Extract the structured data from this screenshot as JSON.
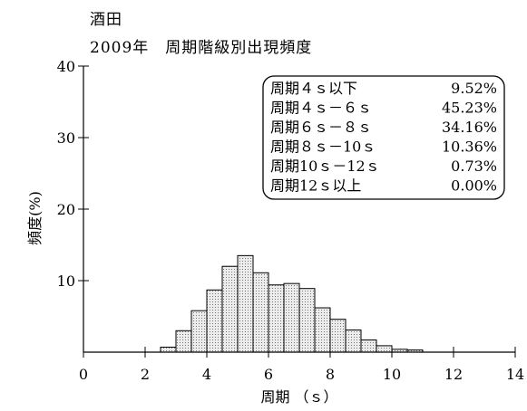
{
  "chart_data": {
    "type": "bar",
    "title": "酒田",
    "subtitle": "2009年　周期階級別出現頻度",
    "xlabel": "周期 （ｓ）",
    "ylabel": "頻度(%)",
    "xlim": [
      0,
      14
    ],
    "ylim": [
      0,
      40
    ],
    "xticks": [
      0,
      2,
      4,
      6,
      8,
      10,
      12,
      14
    ],
    "yticks": [
      10,
      20,
      30,
      40
    ],
    "bin_width": 0.5,
    "bins": [
      {
        "x0": 2.5,
        "value": 0.7
      },
      {
        "x0": 3.0,
        "value": 3.0
      },
      {
        "x0": 3.5,
        "value": 5.8
      },
      {
        "x0": 4.0,
        "value": 8.7
      },
      {
        "x0": 4.5,
        "value": 12.0
      },
      {
        "x0": 5.0,
        "value": 13.5
      },
      {
        "x0": 5.5,
        "value": 11.1
      },
      {
        "x0": 6.0,
        "value": 9.4
      },
      {
        "x0": 6.5,
        "value": 9.6
      },
      {
        "x0": 7.0,
        "value": 8.9
      },
      {
        "x0": 7.5,
        "value": 6.2
      },
      {
        "x0": 8.0,
        "value": 4.6
      },
      {
        "x0": 8.5,
        "value": 3.1
      },
      {
        "x0": 9.0,
        "value": 1.7
      },
      {
        "x0": 9.5,
        "value": 0.9
      },
      {
        "x0": 10.0,
        "value": 0.4
      },
      {
        "x0": 10.5,
        "value": 0.3
      }
    ],
    "legend": {
      "placement": "top-right",
      "entries": [
        {
          "label": "周期４ｓ以下",
          "value": "9.52%"
        },
        {
          "label": "周期４ｓ－６ｓ",
          "value": "45.23%"
        },
        {
          "label": "周期６ｓ－８ｓ",
          "value": "34.16%"
        },
        {
          "label": "周期８ｓ－10ｓ",
          "value": "10.36%"
        },
        {
          "label": "周期10ｓ－12ｓ",
          "value": "0.73%"
        },
        {
          "label": "周期12ｓ以上",
          "value": "0.00%"
        }
      ]
    },
    "bar_fill": "#d8d8d8",
    "grid": false
  }
}
